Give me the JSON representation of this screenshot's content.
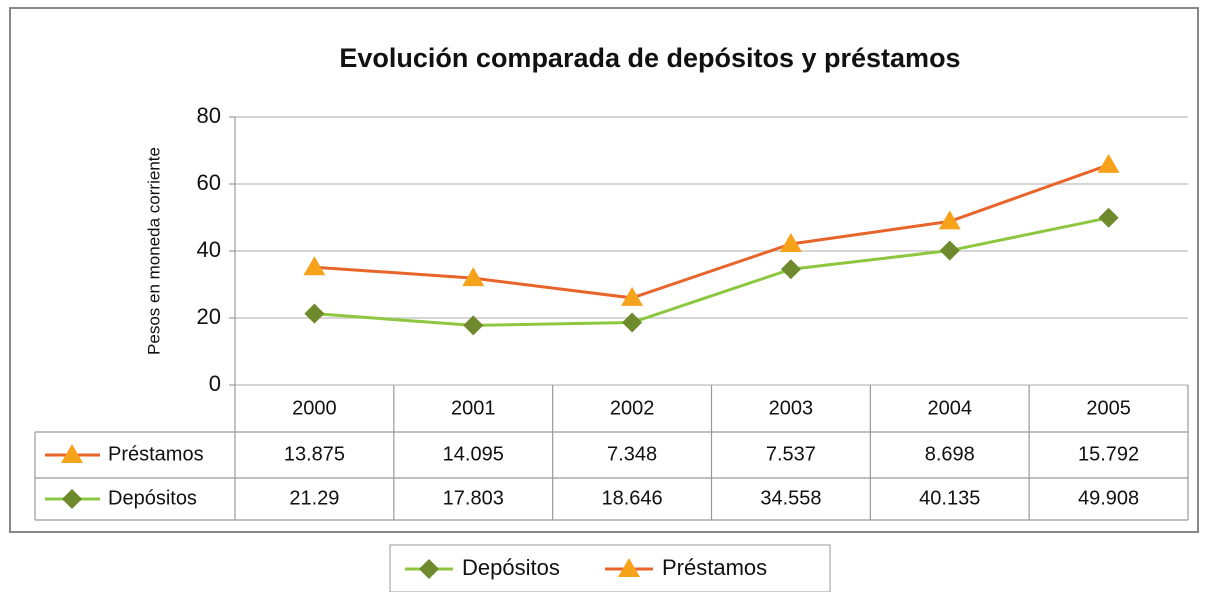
{
  "chart_data": {
    "type": "line",
    "stacked": true,
    "title": "Evolución comparada de depósitos y préstamos",
    "y_label": "Pesos en moneda corriente",
    "categories": [
      "2000",
      "2001",
      "2002",
      "2003",
      "2004",
      "2005"
    ],
    "series": [
      {
        "name": "Depósitos",
        "color": "#8dc63f",
        "marker": "diamond",
        "marker_color": "#6f8a2c",
        "values": [
          21.29,
          17.803,
          18.646,
          34.558,
          40.135,
          49.908
        ]
      },
      {
        "name": "Préstamos",
        "color": "#e8642a",
        "marker": "triangle",
        "marker_color": "#f7a21b",
        "values": [
          13.875,
          14.095,
          7.348,
          7.537,
          8.698,
          15.792
        ]
      }
    ],
    "ylim": [
      0,
      80
    ],
    "yticks": [
      0,
      20,
      40,
      60,
      80
    ],
    "grid": true,
    "legend": "bottom",
    "data_table": true
  }
}
